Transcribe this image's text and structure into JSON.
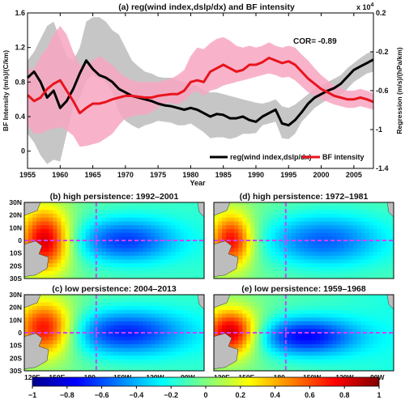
{
  "chart_data": [
    {
      "type": "line",
      "title": "(a) reg(wind index,dslp/dx) and BF intensity",
      "xlabel": "Year",
      "ylabel": "BF Intensity (m/s)/(C/km)",
      "ylabel_right": "Regression (m/s)/(hPa/km)",
      "right_exponent": "x 10",
      "right_exponent_power": "4",
      "annotation": "COR= -0.89",
      "xlim": [
        1955,
        2008
      ],
      "ylim": [
        -0.2,
        1.6
      ],
      "ylim_right": [
        -1.4,
        0.2
      ],
      "x_ticks": [
        1955,
        1960,
        1965,
        1970,
        1975,
        1980,
        1985,
        1990,
        1995,
        2000,
        2005
      ],
      "y_ticks": [
        0,
        0.4,
        0.8,
        1.2,
        1.6
      ],
      "y_ticks_right": [
        0.2,
        -0.2,
        -0.6,
        -1,
        -1.4
      ],
      "x_tick_labels": [
        "1955",
        "1960",
        "1965",
        "1970",
        "1975",
        "1980",
        "1985",
        "1990",
        "1995",
        "2000",
        "2005"
      ],
      "y_tick_labels": [
        "0",
        "0.4",
        "0.8",
        "1.2",
        "1.6"
      ],
      "y_tick_labels_right": [
        "0.2",
        "-0.2",
        "-0.6",
        "-1",
        "-1.4"
      ],
      "legend_position": "bottom-right",
      "x": [
        1955,
        1956,
        1957,
        1958,
        1959,
        1960,
        1961,
        1962,
        1963,
        1964,
        1965,
        1966,
        1967,
        1968,
        1969,
        1970,
        1971,
        1972,
        1973,
        1974,
        1975,
        1976,
        1977,
        1978,
        1979,
        1980,
        1981,
        1982,
        1983,
        1984,
        1985,
        1986,
        1987,
        1988,
        1989,
        1990,
        1991,
        1992,
        1993,
        1994,
        1995,
        1996,
        1997,
        1998,
        1999,
        2000,
        2001,
        2002,
        2003,
        2004,
        2005,
        2006,
        2007,
        2008
      ],
      "series": [
        {
          "name": "reg(wind index,dslp/dx)",
          "color": "#000000",
          "axis": "left",
          "values": [
            0.85,
            0.92,
            0.8,
            0.62,
            0.7,
            0.5,
            0.58,
            0.72,
            0.9,
            1.05,
            0.95,
            0.88,
            0.85,
            0.8,
            0.72,
            0.68,
            0.64,
            0.62,
            0.6,
            0.58,
            0.55,
            0.53,
            0.52,
            0.5,
            0.48,
            0.5,
            0.48,
            0.44,
            0.4,
            0.43,
            0.42,
            0.38,
            0.38,
            0.4,
            0.36,
            0.34,
            0.4,
            0.44,
            0.48,
            0.32,
            0.3,
            0.36,
            0.45,
            0.55,
            0.62,
            0.66,
            0.7,
            0.73,
            0.78,
            0.86,
            0.94,
            0.98,
            1.02,
            1.06
          ],
          "band_lower": [
            0.2,
            0.1,
            -0.05,
            -0.15,
            -0.1,
            -0.12,
            0.2,
            0.5,
            0.62,
            0.82,
            0.88,
            0.84,
            0.8,
            0.68,
            0.45,
            0.35,
            0.3,
            0.26,
            0.3,
            0.32,
            0.35,
            0.34,
            0.33,
            0.3,
            0.3,
            0.32,
            0.27,
            0.22,
            0.15,
            0.16,
            0.16,
            0.14,
            0.16,
            0.2,
            0.2,
            0.21,
            0.3,
            0.32,
            0.34,
            0.15,
            0.14,
            0.2,
            0.34,
            0.42,
            0.5,
            0.55,
            0.6,
            0.62,
            0.66,
            0.72,
            0.8,
            0.85,
            0.9,
            0.92
          ],
          "band_upper": [
            1.05,
            1.15,
            1.3,
            1.45,
            1.5,
            1.3,
            1.1,
            1.05,
            1.2,
            1.5,
            1.55,
            1.55,
            1.5,
            1.4,
            1.35,
            1.2,
            1.05,
            0.98,
            0.92,
            0.9,
            0.86,
            0.85,
            0.85,
            0.82,
            0.8,
            0.78,
            0.75,
            0.7,
            0.68,
            0.68,
            0.66,
            0.64,
            0.62,
            0.6,
            0.58,
            0.56,
            0.55,
            0.57,
            0.6,
            0.52,
            0.5,
            0.54,
            0.6,
            0.66,
            0.72,
            0.76,
            0.8,
            0.84,
            0.88,
            0.96,
            1.02,
            1.08,
            1.13,
            1.16
          ]
        },
        {
          "name": "BF intensity",
          "color": "#e8141c",
          "axis": "left",
          "values": [
            0.65,
            0.58,
            0.62,
            0.72,
            0.78,
            0.82,
            0.7,
            0.58,
            0.44,
            0.5,
            0.55,
            0.55,
            0.57,
            0.6,
            0.62,
            0.64,
            0.64,
            0.63,
            0.62,
            0.62,
            0.64,
            0.65,
            0.66,
            0.66,
            0.7,
            0.8,
            0.82,
            0.8,
            0.92,
            0.96,
            1.0,
            0.96,
            0.92,
            0.94,
            1.0,
            1.0,
            1.03,
            1.08,
            1.05,
            1.02,
            1.04,
            1.0,
            0.92,
            0.84,
            0.78,
            0.72,
            0.68,
            0.64,
            0.62,
            0.6,
            0.6,
            0.62,
            0.6,
            0.57
          ],
          "band_lower": [
            0.3,
            0.2,
            0.2,
            0.24,
            0.26,
            0.28,
            0.24,
            0.18,
            0.05,
            0.06,
            0.08,
            0.1,
            0.15,
            0.2,
            0.3,
            0.38,
            0.4,
            0.42,
            0.42,
            0.45,
            0.5,
            0.55,
            0.56,
            0.54,
            0.58,
            0.66,
            0.7,
            0.64,
            0.7,
            0.72,
            0.76,
            0.78,
            0.8,
            0.82,
            0.84,
            0.86,
            0.88,
            0.9,
            0.88,
            0.85,
            0.86,
            0.82,
            0.75,
            0.68,
            0.64,
            0.6,
            0.57,
            0.54,
            0.52,
            0.5,
            0.5,
            0.52,
            0.5,
            0.48
          ],
          "band_upper": [
            0.95,
            0.95,
            1.1,
            1.2,
            1.35,
            1.45,
            1.35,
            1.15,
            1.0,
            1.0,
            1.05,
            1.1,
            1.05,
            1.0,
            0.92,
            0.86,
            0.82,
            0.8,
            0.8,
            0.8,
            0.8,
            0.82,
            0.84,
            0.88,
            0.94,
            1.1,
            1.2,
            1.18,
            1.25,
            1.3,
            1.32,
            1.28,
            1.22,
            1.2,
            1.22,
            1.2,
            1.22,
            1.26,
            1.22,
            1.2,
            1.22,
            1.2,
            1.12,
            1.05,
            0.96,
            0.88,
            0.82,
            0.76,
            0.73,
            0.7,
            0.7,
            0.72,
            0.7,
            0.67
          ]
        }
      ]
    },
    {
      "type": "heatmap",
      "colormap": "jet",
      "panels": [
        {
          "title": "(b) high persistence: 1992–2001"
        },
        {
          "title": "(d) high persistence: 1972–1981"
        },
        {
          "title": "(c) low persistence: 2004–2013"
        },
        {
          "title": "(e) low persistence: 1959–1968"
        }
      ],
      "lat_labels": [
        "30N",
        "20N",
        "10N",
        "0",
        "10S",
        "20S",
        "30S"
      ],
      "lon_labels": [
        "120E",
        "150E",
        "180",
        "150W",
        "120W",
        "90W"
      ],
      "lon_labels_right": [
        "120E",
        "150E",
        "180",
        "150W",
        "120W",
        "90W"
      ],
      "colorbar_ticks": [
        -1,
        -0.8,
        -0.6,
        -0.4,
        -0.2,
        0,
        0.2,
        0.4,
        0.6,
        0.8,
        1
      ],
      "colorbar_tick_labels": [
        "−1",
        "−0.8",
        "−0.6",
        "−0.4",
        "−0.2",
        "0",
        "0.2",
        "0.4",
        "0.6",
        "0.8",
        "1"
      ],
      "clim": [
        -1,
        1
      ]
    }
  ]
}
